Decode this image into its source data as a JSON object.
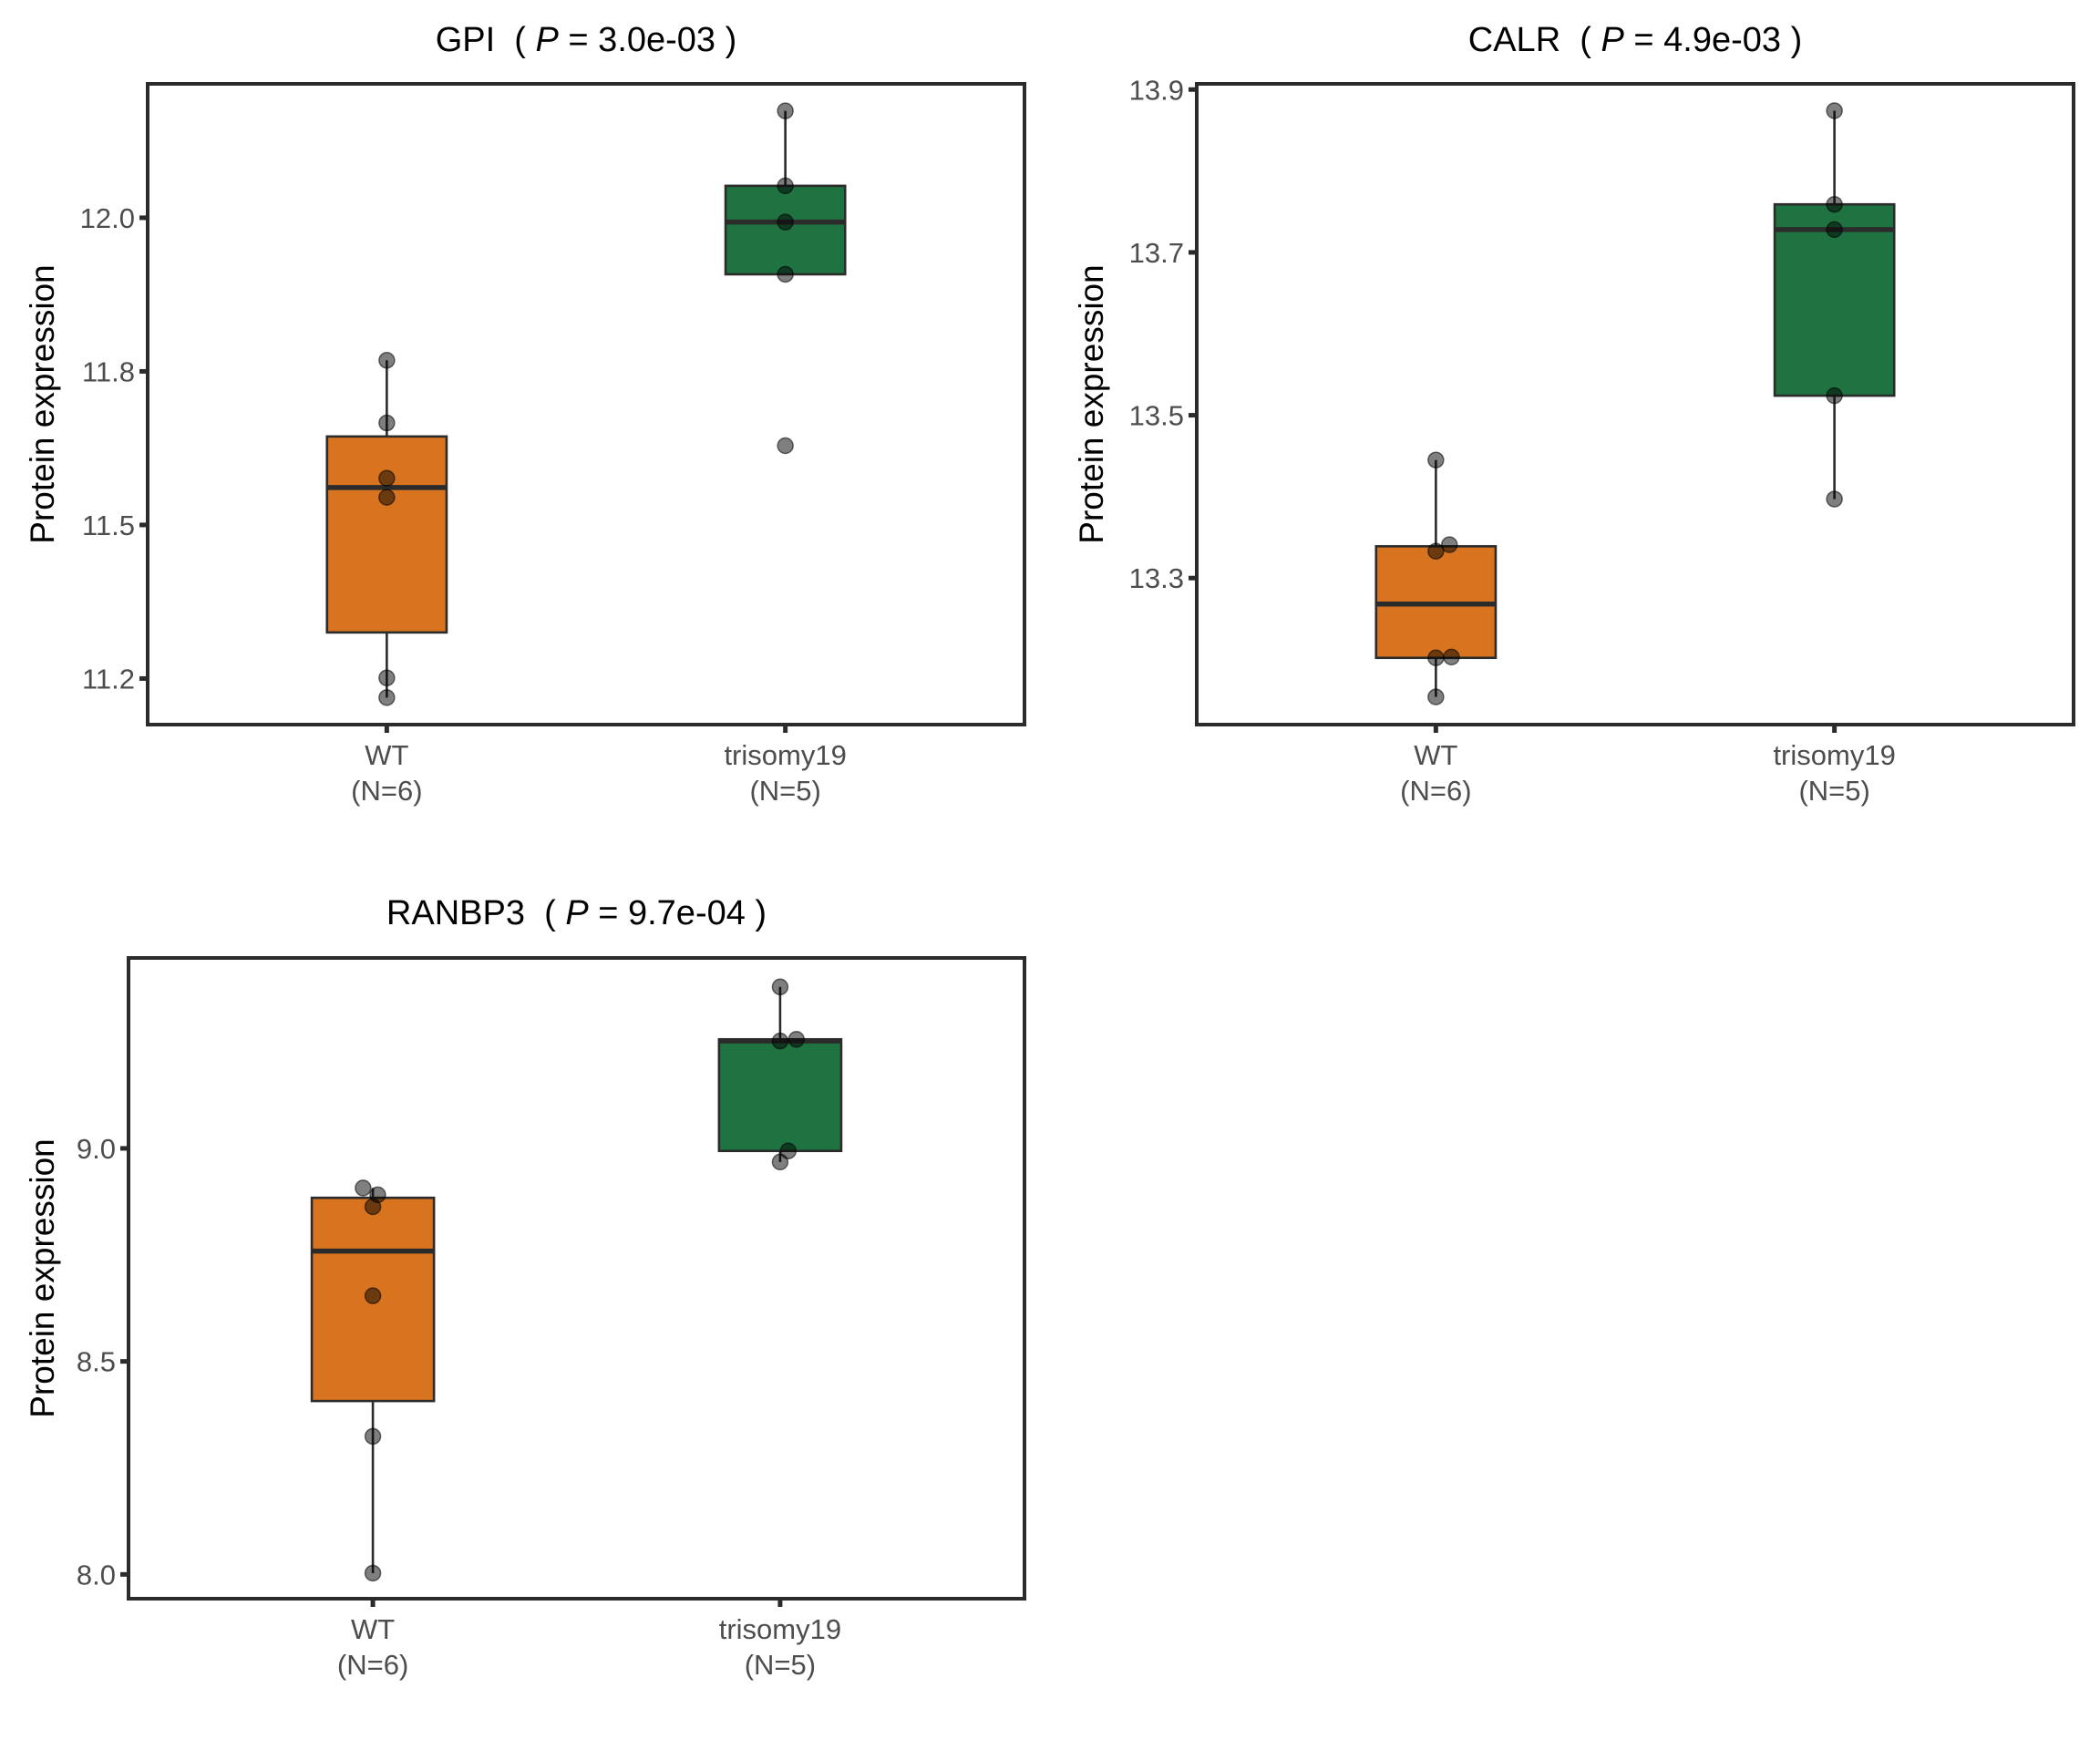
{
  "figure": {
    "background": "#ffffff"
  },
  "chart_data": [
    {
      "type": "box",
      "title": "GPI  ( P = 3.0e-03 )",
      "title_parts": {
        "gene": "GPI",
        "p_label": "P",
        "p_value": "3.0e-03"
      },
      "xlabel": "",
      "ylabel": "Protein expression",
      "categories": [
        "WT",
        "trisomy19"
      ],
      "category_labels": [
        [
          "WT",
          "(N=6)"
        ],
        [
          "trisomy19",
          "(N=5)"
        ]
      ],
      "colors": [
        "#D8741F",
        "#1F7340"
      ],
      "ylim": [
        11.175,
        12.218
      ],
      "yticks": [
        12.0,
        11.75,
        11.5,
        11.25
      ],
      "ytick_labels": [
        "12.0",
        "11.8",
        "11.5",
        "11.2"
      ],
      "grid": false,
      "boxes": [
        {
          "category": "WT",
          "lower": 11.219,
          "q1": 11.325,
          "median": 11.561,
          "q3": 11.644,
          "upper": 11.768
        },
        {
          "category": "trisomy19",
          "lower": 11.908,
          "q1": 11.908,
          "median": 11.993,
          "q3": 12.052,
          "upper": 12.174
        }
      ],
      "points": [
        {
          "category": "WT",
          "values": [
            11.768,
            11.666,
            11.576,
            11.545,
            11.251,
            11.219
          ],
          "jitter": [
            0,
            0,
            0,
            0,
            0,
            0
          ]
        },
        {
          "category": "trisomy19",
          "values": [
            12.174,
            12.052,
            11.993,
            11.908,
            11.629
          ],
          "jitter": [
            0,
            0,
            0,
            0,
            0
          ]
        }
      ]
    },
    {
      "type": "box",
      "title": "CALR  ( P = 4.9e-03 )",
      "title_parts": {
        "gene": "CALR",
        "p_label": "P",
        "p_value": "4.9e-03"
      },
      "xlabel": "",
      "ylabel": "Protein expression",
      "categories": [
        "WT",
        "trisomy19"
      ],
      "category_labels": [
        [
          "WT",
          "(N=6)"
        ],
        [
          "trisomy19",
          "(N=5)"
        ]
      ],
      "colors": [
        "#D8741F",
        "#1F7340"
      ],
      "ylim": [
        13.12,
        13.907
      ],
      "yticks": [
        13.9,
        13.7,
        13.5,
        13.3
      ],
      "ytick_labels": [
        "13.9",
        "13.7",
        "13.5",
        "13.3"
      ],
      "grid": false,
      "boxes": [
        {
          "category": "WT",
          "lower": 13.154,
          "q1": 13.202,
          "median": 13.268,
          "q3": 13.339,
          "upper": 13.445
        },
        {
          "category": "trisomy19",
          "lower": 13.397,
          "q1": 13.524,
          "median": 13.728,
          "q3": 13.759,
          "upper": 13.874
        }
      ],
      "points": [
        {
          "category": "WT",
          "values": [
            13.445,
            13.341,
            13.333,
            13.203,
            13.202,
            13.154
          ],
          "jitter": [
            0,
            0.034,
            0,
            0.039,
            0,
            0
          ]
        },
        {
          "category": "trisomy19",
          "values": [
            13.874,
            13.759,
            13.728,
            13.524,
            13.397
          ],
          "jitter": [
            0,
            0,
            0,
            0,
            0
          ]
        }
      ]
    },
    {
      "type": "box",
      "title": "RANBP3  ( P = 9.7e-04 )",
      "title_parts": {
        "gene": "RANBP3",
        "p_label": "P",
        "p_value": "9.7e-04"
      },
      "xlabel": "",
      "ylabel": "Protein expression",
      "categories": [
        "WT",
        "trisomy19"
      ],
      "category_labels": [
        [
          "WT",
          "(N=6)"
        ],
        [
          "trisomy19",
          "(N=5)"
        ]
      ],
      "colors": [
        "#D8741F",
        "#1F7340"
      ],
      "ylim": [
        7.943,
        9.447
      ],
      "yticks": [
        9.0,
        8.5,
        8.0
      ],
      "ytick_labels": [
        "9.0",
        "8.5",
        "8.0"
      ],
      "grid": false,
      "boxes": [
        {
          "category": "WT",
          "lower": 8.003,
          "q1": 8.407,
          "median": 8.759,
          "q3": 8.884,
          "upper": 8.907
        },
        {
          "category": "trisomy19",
          "lower": 8.968,
          "q1": 8.994,
          "median": 9.252,
          "q3": 9.256,
          "upper": 9.379
        }
      ],
      "points": [
        {
          "category": "WT",
          "values": [
            8.907,
            8.891,
            8.863,
            8.654,
            8.324,
            8.003
          ],
          "jitter": [
            -0.024,
            0.012,
            0,
            0,
            0,
            0
          ]
        },
        {
          "category": "trisomy19",
          "values": [
            9.379,
            9.256,
            9.252,
            8.994,
            8.968
          ],
          "jitter": [
            0,
            0.04,
            0,
            0.02,
            0
          ]
        }
      ]
    }
  ]
}
